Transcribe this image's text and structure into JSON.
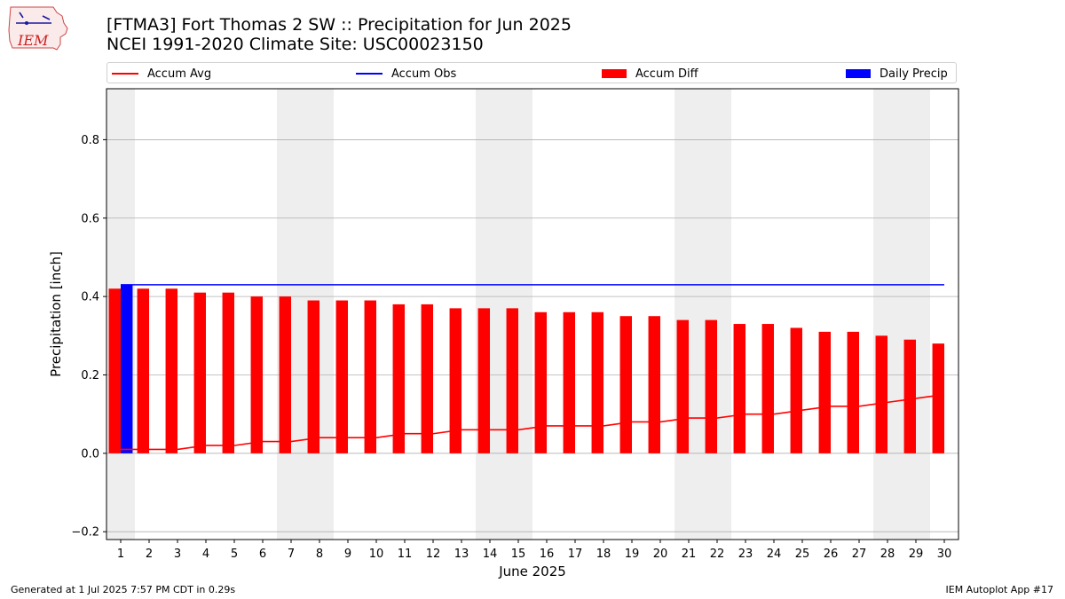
{
  "header": {
    "title_line1": "[FTMA3] Fort Thomas 2 SW :: Precipitation for Jun 2025",
    "title_line2": "NCEI 1991-2020 Climate Site: USC00023150",
    "logo_text": "IEM"
  },
  "footer": {
    "left": "Generated at 1 Jul 2025 7:57 PM CDT in 0.29s",
    "right": "IEM Autoplot App #17"
  },
  "legend": [
    {
      "label": "Accum Avg",
      "type": "line",
      "color": "#ff0000"
    },
    {
      "label": "Accum Obs",
      "type": "line",
      "color": "#0000ff"
    },
    {
      "label": "Accum Diff",
      "type": "box",
      "color": "#ff0000"
    },
    {
      "label": "Daily Precip",
      "type": "box",
      "color": "#0000ff"
    }
  ],
  "chart_data": {
    "type": "bar",
    "xlabel": "June 2025",
    "ylabel": "Precipitation [inch]",
    "xlim": [
      0.5,
      30.5
    ],
    "ylim": [
      -0.22,
      0.93
    ],
    "yticks": [
      -0.2,
      0.0,
      0.2,
      0.4,
      0.6,
      0.8
    ],
    "ytick_labels": [
      "−0.2",
      "0.0",
      "0.2",
      "0.4",
      "0.6",
      "0.8"
    ],
    "grid": true,
    "legend_position": "top",
    "weekend_shading": [
      [
        0.5,
        1.5
      ],
      [
        6.5,
        8.5
      ],
      [
        13.5,
        15.5
      ],
      [
        20.5,
        22.5
      ],
      [
        27.5,
        29.5
      ]
    ],
    "days": [
      1,
      2,
      3,
      4,
      5,
      6,
      7,
      8,
      9,
      10,
      11,
      12,
      13,
      14,
      15,
      16,
      17,
      18,
      19,
      20,
      21,
      22,
      23,
      24,
      25,
      26,
      27,
      28,
      29,
      30
    ],
    "series": [
      {
        "name": "Accum Diff",
        "kind": "bar",
        "color": "#ff0000",
        "values": [
          0.42,
          0.42,
          0.42,
          0.41,
          0.41,
          0.4,
          0.4,
          0.39,
          0.39,
          0.39,
          0.38,
          0.38,
          0.37,
          0.37,
          0.37,
          0.36,
          0.36,
          0.36,
          0.35,
          0.35,
          0.34,
          0.34,
          0.33,
          0.33,
          0.32,
          0.31,
          0.31,
          0.3,
          0.29,
          0.28
        ]
      },
      {
        "name": "Daily Precip",
        "kind": "bar",
        "color": "#0000ff",
        "values": [
          0.43,
          0,
          0,
          0,
          0,
          0,
          0,
          0,
          0,
          0,
          0,
          0,
          0,
          0,
          0,
          0,
          0,
          0,
          0,
          0,
          0,
          0,
          0,
          0,
          0,
          0,
          0,
          0,
          0,
          0
        ]
      },
      {
        "name": "Accum Avg",
        "kind": "line",
        "color": "#ff0000",
        "values": [
          0.01,
          0.01,
          0.01,
          0.02,
          0.02,
          0.03,
          0.03,
          0.04,
          0.04,
          0.04,
          0.05,
          0.05,
          0.06,
          0.06,
          0.06,
          0.07,
          0.07,
          0.07,
          0.08,
          0.08,
          0.09,
          0.09,
          0.1,
          0.1,
          0.11,
          0.12,
          0.12,
          0.13,
          0.14,
          0.15
        ]
      },
      {
        "name": "Accum Obs",
        "kind": "line",
        "color": "#0000ff",
        "values": [
          0.43,
          0.43,
          0.43,
          0.43,
          0.43,
          0.43,
          0.43,
          0.43,
          0.43,
          0.43,
          0.43,
          0.43,
          0.43,
          0.43,
          0.43,
          0.43,
          0.43,
          0.43,
          0.43,
          0.43,
          0.43,
          0.43,
          0.43,
          0.43,
          0.43,
          0.43,
          0.43,
          0.43,
          0.43,
          0.43
        ]
      }
    ]
  }
}
